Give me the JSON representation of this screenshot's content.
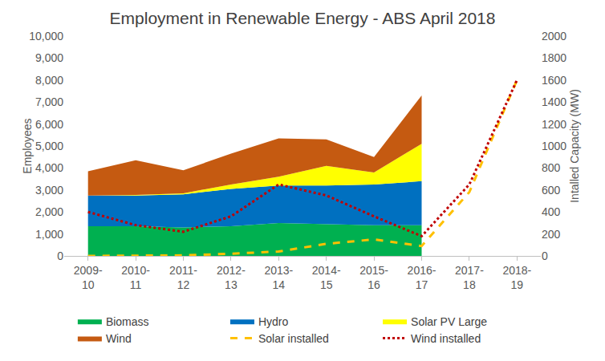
{
  "chart_data": {
    "type": "area",
    "title": "Employment in Renewable Energy - ABS April 2018",
    "y_label": "Employees",
    "y2_label": "Intalled Capacity (MW)",
    "categories": [
      "2009-10",
      "2010-11",
      "2011-12",
      "2012-13",
      "2013-14",
      "2014-15",
      "2015-16",
      "2016-17",
      "2017-18",
      "2018-19"
    ],
    "stacked": true,
    "grid": false,
    "legend": "bottom",
    "ylim": [
      0,
      10000
    ],
    "yticks": [
      0,
      {
        "value": 1000,
        "label": "1,000"
      },
      {
        "value": 2000,
        "label": "2,000"
      },
      {
        "value": 3000,
        "label": "3,000"
      },
      {
        "value": 4000,
        "label": "4,000"
      },
      {
        "value": 5000,
        "label": "5,000"
      },
      {
        "value": 6000,
        "label": "6,000"
      },
      {
        "value": 7000,
        "label": "7,000"
      },
      {
        "value": 8000,
        "label": "8,000"
      },
      {
        "value": 9000,
        "label": "9,000"
      },
      {
        "value": 10000,
        "label": "10,000"
      }
    ],
    "y2lim": [
      0,
      2000
    ],
    "y2ticks": [
      0,
      200,
      400,
      600,
      800,
      1000,
      1200,
      1400,
      1600,
      1800,
      2000
    ],
    "series": [
      {
        "name": "Biomass",
        "color": "#00b050",
        "type": "area",
        "values": [
          1350,
          1350,
          1300,
          1350,
          1500,
          1450,
          1400,
          1400,
          null,
          null
        ]
      },
      {
        "name": "Hydro",
        "color": "#0070c0",
        "type": "area",
        "values": [
          1400,
          1400,
          1500,
          1700,
          1700,
          1750,
          1850,
          2000,
          null,
          null
        ]
      },
      {
        "name": "Solar PV Large",
        "color": "#ffff00",
        "type": "area",
        "values": [
          0,
          20,
          50,
          200,
          400,
          900,
          550,
          1700,
          null,
          null
        ]
      },
      {
        "name": "Wind",
        "color": "#c55a11",
        "type": "area",
        "values": [
          1100,
          1580,
          1050,
          1400,
          1750,
          1200,
          700,
          2200,
          null,
          null
        ]
      },
      {
        "name": "Solar installed",
        "color": "#ffc000",
        "type": "line",
        "line_style": "dash",
        "axis": "y2",
        "values": [
          0,
          0,
          5,
          20,
          40,
          110,
          150,
          90,
          580,
          1600
        ]
      },
      {
        "name": "Wind installed",
        "color": "#c00000",
        "type": "line",
        "line_style": "dot",
        "axis": "y2",
        "values": [
          400,
          280,
          220,
          360,
          650,
          550,
          360,
          180,
          650,
          1600
        ]
      }
    ]
  }
}
